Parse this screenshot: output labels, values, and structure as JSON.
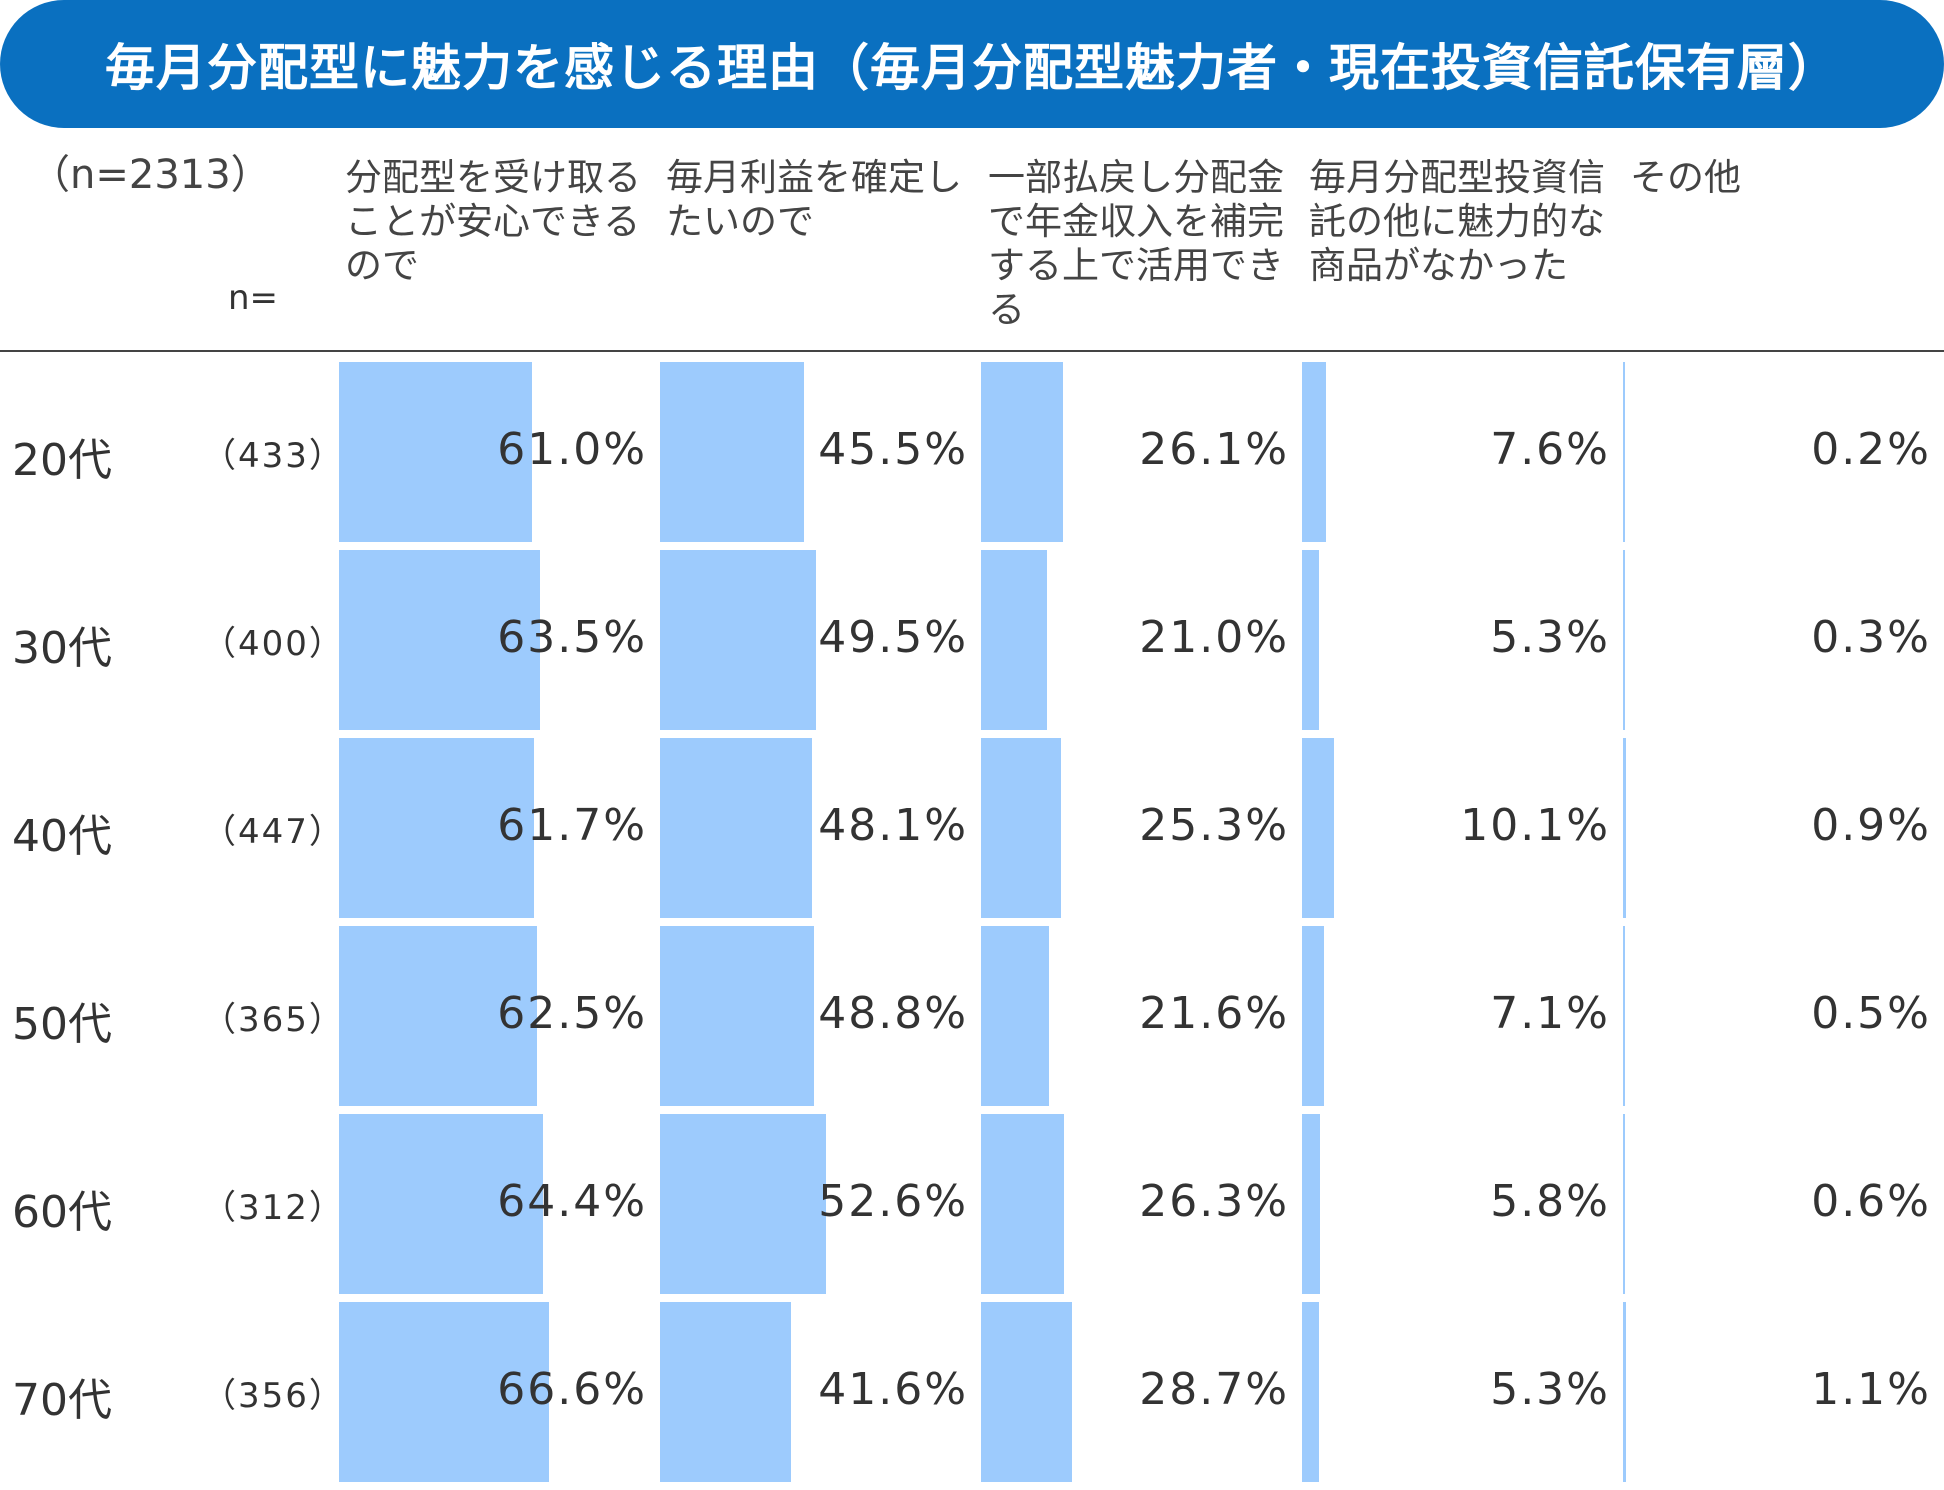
{
  "title": "毎月分配型に魅力を感じる理由（毎月分配型魅力者・現在投資信託保有層）",
  "sample_total": "（n=2313）",
  "n_label": "n=",
  "colors": {
    "banner": "#0a70c0",
    "bar": "#9dcbfd"
  },
  "chart_data": {
    "type": "bar",
    "orientation": "horizontal",
    "unit": "%",
    "columns": [
      "分配型を受け取ることが安心できるので",
      "毎月利益を確定したいので",
      "一部払戻し分配金で年金収入を補完する上で活用できる",
      "毎月分配型投資信託の他に魅力的な商品がなかった",
      "その他"
    ],
    "rows": [
      {
        "label": "20代",
        "n": "（433）",
        "values": [
          61.0,
          45.5,
          26.1,
          7.6,
          0.2
        ],
        "display": [
          "61.0%",
          "45.5%",
          "26.1%",
          "7.6%",
          "0.2%"
        ]
      },
      {
        "label": "30代",
        "n": "（400）",
        "values": [
          63.5,
          49.5,
          21.0,
          5.3,
          0.3
        ],
        "display": [
          "63.5%",
          "49.5%",
          "21.0%",
          "5.3%",
          "0.3%"
        ]
      },
      {
        "label": "40代",
        "n": "（447）",
        "values": [
          61.7,
          48.1,
          25.3,
          10.1,
          0.9
        ],
        "display": [
          "61.7%",
          "48.1%",
          "25.3%",
          "10.1%",
          "0.9%"
        ]
      },
      {
        "label": "50代",
        "n": "（365）",
        "values": [
          62.5,
          48.8,
          21.6,
          7.1,
          0.5
        ],
        "display": [
          "62.5%",
          "48.8%",
          "21.6%",
          "7.1%",
          "0.5%"
        ]
      },
      {
        "label": "60代",
        "n": "（312）",
        "values": [
          64.4,
          52.6,
          26.3,
          5.8,
          0.6
        ],
        "display": [
          "64.4%",
          "52.6%",
          "26.3%",
          "5.8%",
          "0.6%"
        ]
      },
      {
        "label": "70代",
        "n": "（356）",
        "values": [
          66.6,
          41.6,
          28.7,
          5.3,
          1.1
        ],
        "display": [
          "66.6%",
          "41.6%",
          "28.7%",
          "5.3%",
          "1.1%"
        ]
      }
    ],
    "value_max": 100
  }
}
